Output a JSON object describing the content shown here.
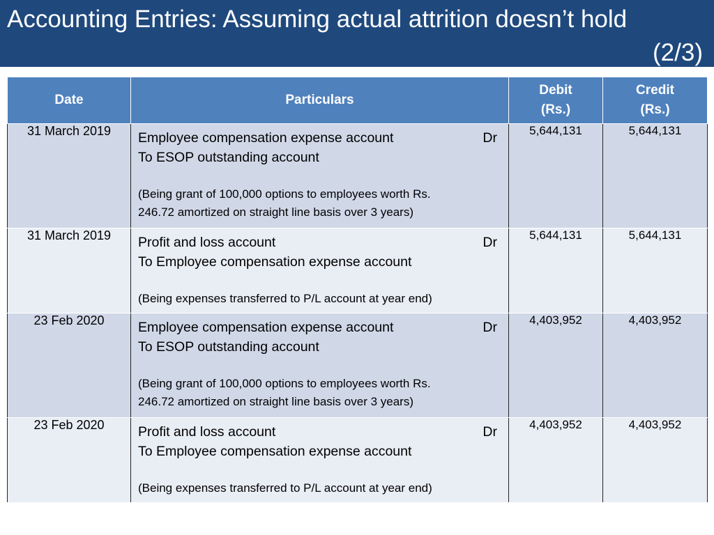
{
  "title": {
    "line1": "Accounting Entries: Assuming actual attrition doesn’t hold",
    "line2": "(2/3)"
  },
  "table": {
    "headers": {
      "date": "Date",
      "particulars": "Particulars",
      "debit_line1": "Debit",
      "debit_line2": "(Rs.)",
      "credit_line1": "Credit",
      "credit_line2": "(Rs.)"
    },
    "rows": [
      {
        "date": "31 March 2019",
        "line1": "Employee compensation expense account",
        "dr": "Dr",
        "line2": "To ESOP outstanding account",
        "narration_line1": "(Being grant of 100,000 options to employees worth Rs.",
        "narration_line2": "246.72 amortized on straight line basis over 3 years)",
        "debit": "5,644,131",
        "credit": "5,644,131"
      },
      {
        "date": "31 March 2019",
        "line1": "Profit and loss account",
        "dr": "Dr",
        "line2": "To Employee compensation expense account",
        "narration_line1": "(Being expenses transferred to P/L account at year end)",
        "narration_line2": "",
        "debit": "5,644,131",
        "credit": "5,644,131"
      },
      {
        "date": "23 Feb 2020",
        "line1": "Employee compensation expense account",
        "dr": "Dr",
        "line2": "To ESOP outstanding account",
        "narration_line1": "(Being grant of 100,000 options to employees worth Rs.",
        "narration_line2": "246.72 amortized on straight line basis over 3 years)",
        "debit": "4,403,952",
        "credit": "4,403,952"
      },
      {
        "date": "23 Feb 2020",
        "line1": "Profit and loss account",
        "dr": "Dr",
        "line2": "To Employee compensation expense account",
        "narration_line1": "(Being expenses transferred to P/L account at year end)",
        "narration_line2": "",
        "debit": "4,403,952",
        "credit": "4,403,952"
      }
    ]
  },
  "colors": {
    "title_bar": "#1f497d",
    "header_row": "#4f81bd",
    "row_dark": "#d0d8e8",
    "row_light": "#e9edf4"
  }
}
